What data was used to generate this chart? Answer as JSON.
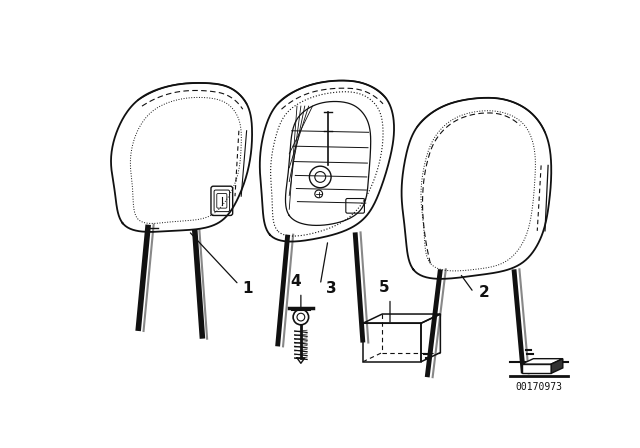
{
  "bg_color": "#ffffff",
  "line_color": "#111111",
  "figsize": [
    6.4,
    4.48
  ],
  "dpi": 100,
  "part_number": "00170973"
}
